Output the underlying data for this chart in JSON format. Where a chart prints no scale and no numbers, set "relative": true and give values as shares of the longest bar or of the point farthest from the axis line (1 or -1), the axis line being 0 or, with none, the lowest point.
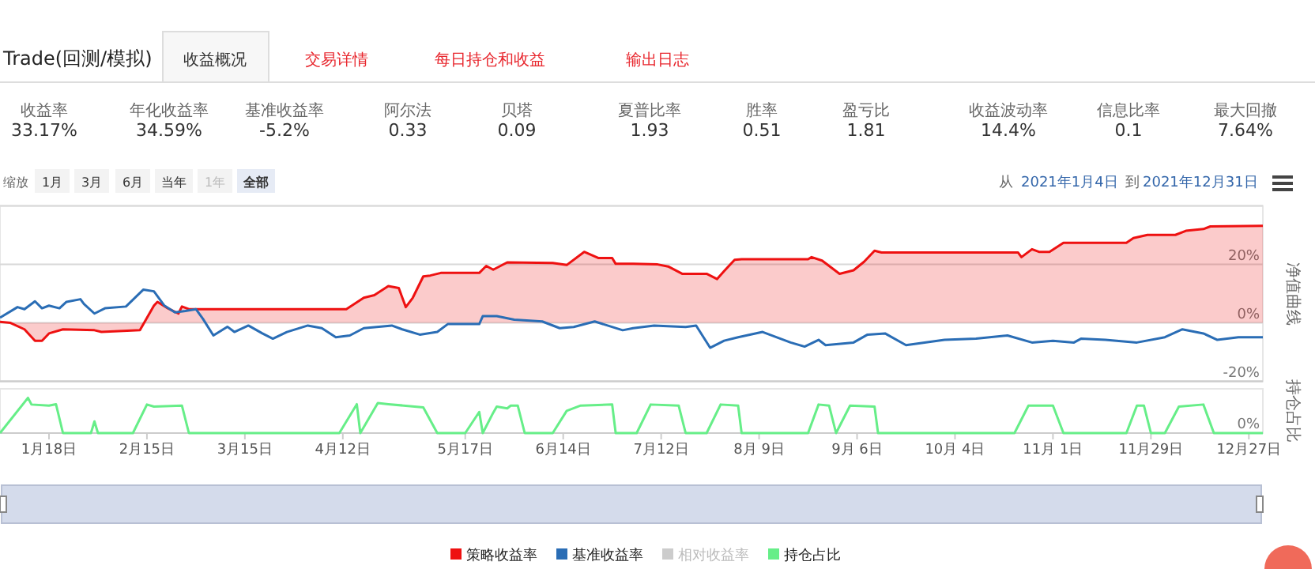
{
  "chart_data": [
    {
      "type": "other",
      "title": "Trade(回测/模拟)",
      "annotations": [
        "收益概况",
        "交易详情",
        "每日持仓和收益",
        "输出日志",
        "收益率",
        "33.17%",
        "年化收益率",
        "34.59%",
        "基准收益率",
        "-5.2%",
        "阿尔法",
        "0.33",
        "贝塔",
        "0.09",
        "夏普比率",
        "1.93",
        "胜率",
        "0.51",
        "盈亏比",
        "1.81",
        "收益波动率",
        "14.4%",
        "信息比率",
        "0.1",
        "最大回撤",
        "7.64%",
        "缩放",
        "1月",
        "3月",
        "6月",
        "当年",
        "1年",
        "全部",
        "从",
        "2021年1月4日",
        "到",
        "2021年12月31日"
      ]
    },
    {
      "type": "line",
      "ylabel": "净值曲线",
      "xlim": [
        "2021-01-04",
        "2021-12-31"
      ],
      "ylim": [
        -20,
        40
      ],
      "yticks": [
        {
          "value": -20,
          "label": "-20%"
        },
        {
          "value": 0,
          "label": "0%"
        },
        {
          "value": 20,
          "label": "20%"
        },
        {
          "value": 40,
          "label": null
        }
      ],
      "grid": "y",
      "tick_labels": "y",
      "legend": "bottom",
      "series": [
        {
          "name": "策略收益率",
          "type": "area",
          "color": "#ee1111",
          "x": [
            "2021-01-04",
            "2021-01-07",
            "2021-01-11",
            "2021-01-14",
            "2021-01-16",
            "2021-01-18",
            "2021-01-22",
            "2021-01-31",
            "2021-02-02",
            "2021-02-13",
            "2021-02-17",
            "2021-02-18",
            "2021-02-21",
            "2021-02-24",
            "2021-02-25",
            "2021-02-27",
            "2021-04-13",
            "2021-04-18",
            "2021-04-21",
            "2021-04-25",
            "2021-04-28",
            "2021-04-30",
            "2021-05-02",
            "2021-05-05",
            "2021-05-07",
            "2021-05-10",
            "2021-05-21",
            "2021-05-23",
            "2021-05-25",
            "2021-05-29",
            "2021-06-11",
            "2021-06-15",
            "2021-06-20",
            "2021-06-24",
            "2021-06-28",
            "2021-06-29",
            "2021-07-04",
            "2021-07-11",
            "2021-07-14",
            "2021-07-18",
            "2021-07-25",
            "2021-07-28",
            "2021-07-30",
            "2021-08-02",
            "2021-08-04",
            "2021-08-23",
            "2021-08-24",
            "2021-08-27",
            "2021-09-01",
            "2021-09-05",
            "2021-09-08",
            "2021-09-11",
            "2021-09-13",
            "2021-10-22",
            "2021-10-23",
            "2021-10-26",
            "2021-10-28",
            "2021-10-31",
            "2021-11-04",
            "2021-11-22",
            "2021-11-24",
            "2021-11-28",
            "2021-12-06",
            "2021-12-09",
            "2021-12-14",
            "2021-12-16",
            "2021-12-31"
          ],
          "values": [
            0.4,
            0,
            -2.2,
            -6.1,
            -6.1,
            -3.6,
            -2.2,
            -2.5,
            -3.1,
            -2.5,
            5.9,
            7.2,
            5.0,
            3.2,
            5.6,
            4.7,
            4.7,
            8.6,
            9.5,
            12.6,
            11.9,
            5.4,
            8.6,
            15.9,
            16.2,
            17.1,
            17.1,
            19.5,
            18.2,
            20.7,
            20.5,
            19.8,
            24.3,
            22.2,
            22.2,
            20.2,
            20.2,
            20.0,
            19.3,
            16.8,
            16.8,
            15.0,
            17.7,
            21.6,
            21.8,
            21.8,
            22.5,
            21.3,
            16.8,
            18.0,
            20.9,
            24.7,
            24.1,
            24.1,
            22.5,
            25.2,
            24.3,
            24.3,
            27.4,
            27.4,
            29.0,
            30.1,
            30.1,
            31.5,
            32.1,
            33.0,
            33.2
          ]
        },
        {
          "name": "基准收益率",
          "type": "line",
          "color": "#2a6db5",
          "x": [
            "2021-01-04",
            "2021-01-09",
            "2021-01-11",
            "2021-01-14",
            "2021-01-16",
            "2021-01-18",
            "2021-01-21",
            "2021-01-23",
            "2021-01-27",
            "2021-01-28",
            "2021-01-31",
            "2021-02-03",
            "2021-02-09",
            "2021-02-14",
            "2021-02-17",
            "2021-02-20",
            "2021-02-23",
            "2021-02-26",
            "2021-03-01",
            "2021-03-03",
            "2021-03-06",
            "2021-03-10",
            "2021-03-12",
            "2021-03-16",
            "2021-03-20",
            "2021-03-23",
            "2021-03-27",
            "2021-04-02",
            "2021-04-06",
            "2021-04-10",
            "2021-04-14",
            "2021-04-18",
            "2021-04-26",
            "2021-04-29",
            "2021-05-04",
            "2021-05-09",
            "2021-05-12",
            "2021-05-16",
            "2021-05-21",
            "2021-05-22",
            "2021-05-26",
            "2021-05-31",
            "2021-06-08",
            "2021-06-13",
            "2021-06-17",
            "2021-06-23",
            "2021-07-01",
            "2021-07-04",
            "2021-07-10",
            "2021-07-19",
            "2021-07-22",
            "2021-07-26",
            "2021-07-30",
            "2021-08-03",
            "2021-08-10",
            "2021-08-18",
            "2021-08-22",
            "2021-08-26",
            "2021-08-28",
            "2021-09-05",
            "2021-09-09",
            "2021-09-14",
            "2021-09-20",
            "2021-10-01",
            "2021-10-10",
            "2021-10-19",
            "2021-10-26",
            "2021-11-01",
            "2021-11-07",
            "2021-11-09",
            "2021-11-16",
            "2021-11-25",
            "2021-12-03",
            "2021-12-08",
            "2021-12-14",
            "2021-12-18",
            "2021-12-24",
            "2021-12-31"
          ],
          "values": [
            1.8,
            5.4,
            4.7,
            7.4,
            5.0,
            5.9,
            5.0,
            7.2,
            8.1,
            6.5,
            3.2,
            5.0,
            5.6,
            11.4,
            10.8,
            5.9,
            3.6,
            4.1,
            4.7,
            1.4,
            -4.3,
            -1.3,
            -3.1,
            -0.9,
            -3.6,
            -5.4,
            -3.1,
            -0.9,
            -1.8,
            -4.9,
            -4.3,
            -1.8,
            -0.9,
            -2.2,
            -4.0,
            -3.1,
            -0.4,
            -0.4,
            -0.4,
            2.3,
            2.3,
            1.1,
            0.5,
            -1.8,
            -1.4,
            0.5,
            -2.5,
            -1.8,
            -0.9,
            -1.4,
            -0.9,
            -8.5,
            -6.1,
            -4.9,
            -3.1,
            -6.7,
            -8.1,
            -5.8,
            -7.6,
            -6.7,
            -4.0,
            -3.6,
            -7.6,
            -5.8,
            -5.4,
            -4.3,
            -6.7,
            -6.1,
            -6.7,
            -5.4,
            -5.8,
            -6.7,
            -4.9,
            -2.2,
            -3.6,
            -5.8,
            -4.9,
            -4.9
          ]
        },
        {
          "name": "相对收益率",
          "type": "line",
          "color": "#cccccc"
        }
      ]
    },
    {
      "type": "line",
      "relative": true,
      "ylabel": "持仓占比",
      "annotations": [
        "0%"
      ],
      "xlim": [
        "2021-01-04",
        "2021-12-31"
      ],
      "xticks": [
        {
          "value": "2021-01-18",
          "label": "1月18日"
        },
        {
          "value": "2021-02-15",
          "label": "2月15日"
        },
        {
          "value": "2021-03-15",
          "label": "3月15日"
        },
        {
          "value": "2021-04-12",
          "label": "4月12日"
        },
        {
          "value": "2021-05-17",
          "label": "5月17日"
        },
        {
          "value": "2021-06-14",
          "label": "6月14日"
        },
        {
          "value": "2021-07-12",
          "label": "7月12日"
        },
        {
          "value": "2021-08-09",
          "label": "8月 9日"
        },
        {
          "value": "2021-09-06",
          "label": "9月 6日"
        },
        {
          "value": "2021-10-04",
          "label": "10月 4日"
        },
        {
          "value": "2021-11-01",
          "label": "11月 1日"
        },
        {
          "value": "2021-11-29",
          "label": "11月29日"
        },
        {
          "value": "2021-12-27",
          "label": "12月27日"
        }
      ],
      "legend": "bottom",
      "series": [
        {
          "name": "持仓占比",
          "type": "line",
          "color": "#66ee88",
          "x": [
            "2021-01-04",
            "2021-01-12",
            "2021-01-13",
            "2021-01-18",
            "2021-01-20",
            "2021-01-22",
            "2021-01-30",
            "2021-01-31",
            "2021-02-01",
            "2021-02-11",
            "2021-02-15",
            "2021-02-17",
            "2021-02-25",
            "2021-02-27",
            "2021-04-11",
            "2021-04-16",
            "2021-04-17",
            "2021-04-22",
            "2021-04-25",
            "2021-05-05",
            "2021-05-09",
            "2021-05-17",
            "2021-05-21",
            "2021-05-22",
            "2021-05-25",
            "2021-05-26",
            "2021-05-29",
            "2021-05-30",
            "2021-06-01",
            "2021-06-03",
            "2021-06-11",
            "2021-06-15",
            "2021-06-19",
            "2021-06-28",
            "2021-06-29",
            "2021-07-05",
            "2021-07-09",
            "2021-07-17",
            "2021-07-19",
            "2021-07-25",
            "2021-07-29",
            "2021-08-03",
            "2021-08-04",
            "2021-08-23",
            "2021-08-26",
            "2021-08-29",
            "2021-08-31",
            "2021-09-04",
            "2021-09-11",
            "2021-09-12",
            "2021-10-21",
            "2021-10-25",
            "2021-11-01",
            "2021-11-04",
            "2021-11-22",
            "2021-11-25",
            "2021-11-27",
            "2021-11-29",
            "2021-12-03",
            "2021-12-07",
            "2021-12-14",
            "2021-12-17",
            "2021-12-31"
          ],
          "values": [
            0,
            1,
            0.81,
            0.78,
            0.82,
            0,
            0,
            0.33,
            0,
            0,
            0.81,
            0.75,
            0.78,
            0,
            0,
            0.82,
            0,
            0.85,
            0.82,
            0.73,
            0,
            0,
            0.6,
            0,
            0.58,
            0.75,
            0.7,
            0.78,
            0.78,
            0,
            0,
            0.63,
            0.78,
            0.81,
            0,
            0,
            0.81,
            0.78,
            0,
            0,
            0.81,
            0.78,
            0,
            0,
            0.81,
            0.78,
            0,
            0.78,
            0.75,
            0,
            0,
            0.78,
            0.78,
            0,
            0,
            0.78,
            0.78,
            0,
            0,
            0.75,
            0.81,
            0,
            0
          ]
        }
      ]
    }
  ]
}
